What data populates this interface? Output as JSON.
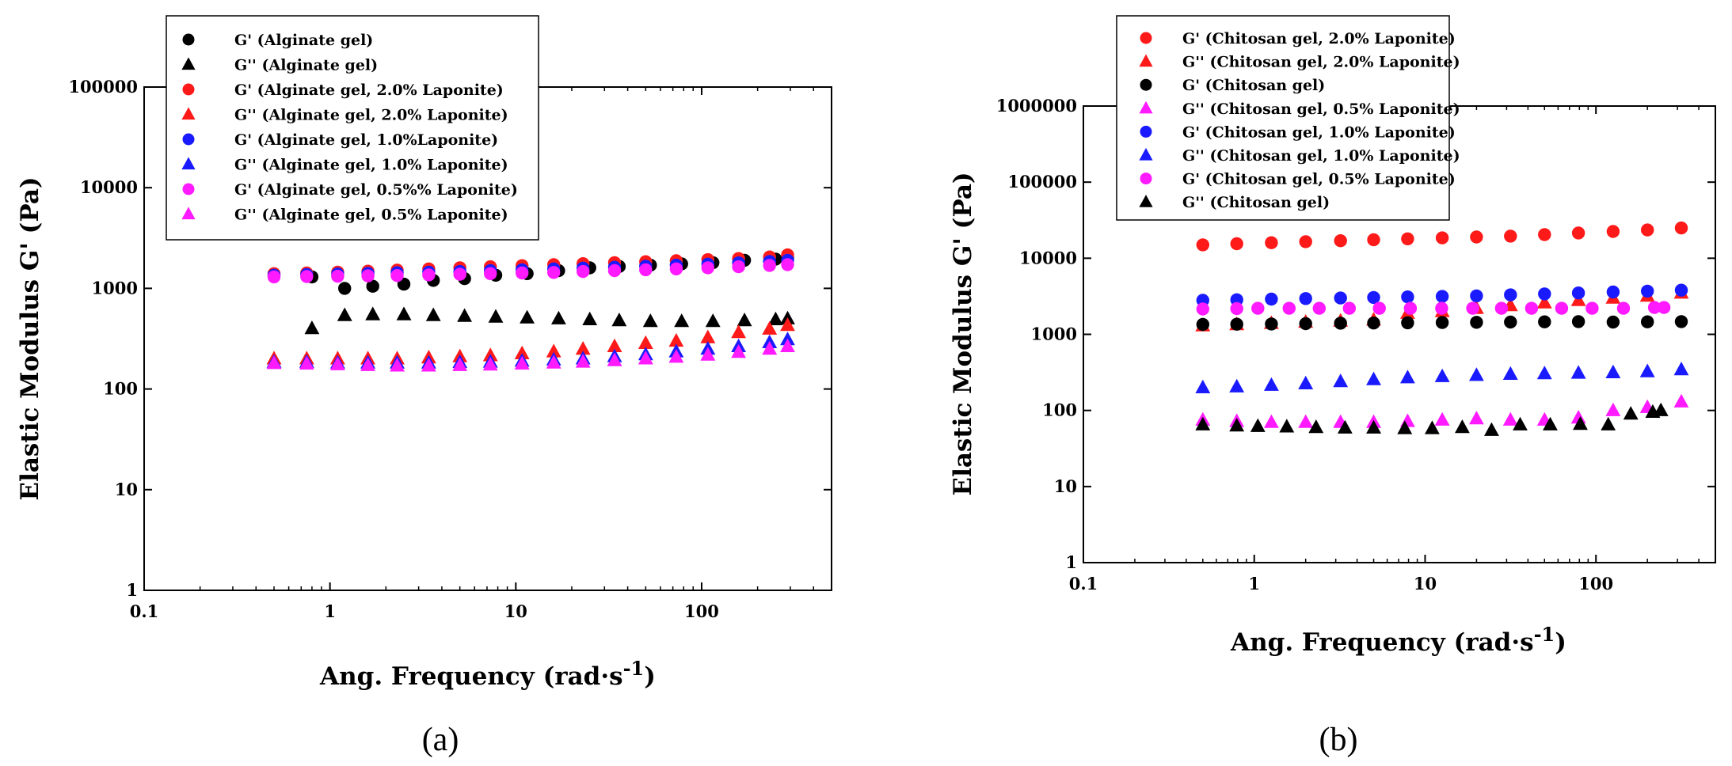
{
  "chart_data": [
    {
      "type": "scatter",
      "panel_label": "(a)",
      "xscale": "log",
      "yscale": "log",
      "xlabel_main": "Ang. Frequency (rad·s",
      "xlabel_sup": "-1",
      "xlabel_end": ")",
      "ylabel": "Elastic Modulus G' (Pa)",
      "xlim": [
        0.1,
        500
      ],
      "ylim": [
        1,
        100000
      ],
      "xticks": [
        {
          "v": 0.1,
          "label": "0.1"
        },
        {
          "v": 1,
          "label": "1"
        },
        {
          "v": 10,
          "label": "10"
        },
        {
          "v": 100,
          "label": "100"
        }
      ],
      "yticks": [
        {
          "v": 1,
          "label": "1"
        },
        {
          "v": 10,
          "label": "10"
        },
        {
          "v": 100,
          "label": "100"
        },
        {
          "v": 1000,
          "label": "1000"
        },
        {
          "v": 10000,
          "label": "10000"
        },
        {
          "v": 100000,
          "label": "100000"
        }
      ],
      "legend_position": "top-left",
      "series": [
        {
          "name": "G' (Alginate gel)",
          "color": "#000000",
          "marker": "circle",
          "x": [
            0.8,
            1.2,
            1.7,
            2.5,
            3.6,
            5.3,
            7.8,
            11.5,
            17,
            25,
            36,
            53,
            78,
            115,
            170,
            250,
            290
          ],
          "y": [
            1300,
            1000,
            1050,
            1100,
            1200,
            1250,
            1350,
            1400,
            1500,
            1600,
            1650,
            1700,
            1750,
            1800,
            1900,
            1950,
            2000
          ]
        },
        {
          "name": "G'' (Alginate gel)",
          "color": "#000000",
          "marker": "triangle",
          "x": [
            0.8,
            1.2,
            1.7,
            2.5,
            3.6,
            5.3,
            7.8,
            11.5,
            17,
            25,
            36,
            53,
            78,
            115,
            170,
            250,
            290
          ],
          "y": [
            400,
            540,
            550,
            550,
            540,
            530,
            520,
            510,
            500,
            490,
            480,
            470,
            470,
            470,
            480,
            490,
            500
          ]
        },
        {
          "name": "G' (Alginate gel, 2.0% Laponite)",
          "color": "#ff1a1a",
          "marker": "circle",
          "x": [
            0.5,
            0.75,
            1.1,
            1.6,
            2.3,
            3.4,
            5,
            7.3,
            10.8,
            16,
            23,
            34,
            50,
            73,
            108,
            158,
            232,
            290
          ],
          "y": [
            1400,
            1420,
            1450,
            1480,
            1520,
            1560,
            1600,
            1640,
            1680,
            1720,
            1760,
            1800,
            1840,
            1880,
            1930,
            1980,
            2050,
            2150
          ]
        },
        {
          "name": "G'' (Alginate gel, 2.0% Laponite)",
          "color": "#ff1a1a",
          "marker": "triangle",
          "x": [
            0.5,
            0.75,
            1.1,
            1.6,
            2.3,
            3.4,
            5,
            7.3,
            10.8,
            16,
            23,
            34,
            50,
            73,
            108,
            158,
            232,
            290
          ],
          "y": [
            200,
            200,
            200,
            200,
            200,
            205,
            210,
            215,
            225,
            235,
            250,
            265,
            285,
            300,
            325,
            365,
            395,
            430
          ]
        },
        {
          "name": "G' (Alginate gel, 1.0%Laponite)",
          "color": "#1a1aff",
          "marker": "circle",
          "x": [
            0.5,
            0.75,
            1.1,
            1.6,
            2.3,
            3.4,
            5,
            7.3,
            10.8,
            16,
            23,
            34,
            50,
            73,
            108,
            158,
            232,
            290
          ],
          "y": [
            1350,
            1370,
            1390,
            1410,
            1430,
            1450,
            1470,
            1500,
            1530,
            1560,
            1590,
            1620,
            1660,
            1700,
            1740,
            1790,
            1850,
            1900
          ]
        },
        {
          "name": "G'' (Alginate gel, 1.0% Laponite)",
          "color": "#1a1aff",
          "marker": "triangle",
          "x": [
            0.5,
            0.75,
            1.1,
            1.6,
            2.3,
            3.4,
            5,
            7.3,
            10.8,
            16,
            23,
            34,
            50,
            73,
            108,
            158,
            232,
            290
          ],
          "y": [
            185,
            185,
            182,
            182,
            182,
            182,
            184,
            186,
            190,
            195,
            200,
            210,
            220,
            235,
            250,
            265,
            290,
            310
          ]
        },
        {
          "name": "G' (Alginate gel, 0.5%% Laponite)",
          "color": "#ff1aff",
          "marker": "circle",
          "x": [
            0.5,
            0.75,
            1.1,
            1.6,
            2.3,
            3.4,
            5,
            7.3,
            10.8,
            16,
            23,
            34,
            50,
            73,
            108,
            158,
            232,
            290
          ],
          "y": [
            1300,
            1310,
            1320,
            1330,
            1340,
            1360,
            1380,
            1400,
            1420,
            1440,
            1470,
            1500,
            1530,
            1560,
            1600,
            1640,
            1690,
            1720
          ]
        },
        {
          "name": "G'' (Alginate gel, 0.5% Laponite)",
          "color": "#ff1aff",
          "marker": "triangle",
          "x": [
            0.5,
            0.75,
            1.1,
            1.6,
            2.3,
            3.4,
            5,
            7.3,
            10.8,
            16,
            23,
            34,
            50,
            73,
            108,
            158,
            232,
            290
          ],
          "y": [
            180,
            178,
            175,
            172,
            170,
            170,
            172,
            174,
            178,
            182,
            186,
            192,
            200,
            208,
            218,
            232,
            250,
            265
          ]
        }
      ]
    },
    {
      "type": "scatter",
      "panel_label": "(b)",
      "xscale": "log",
      "yscale": "log",
      "xlabel_main": "Ang. Frequency (rad·s",
      "xlabel_sup": "-1",
      "xlabel_end": ")",
      "ylabel": "Elastic Modulus G' (Pa)",
      "xlim": [
        0.1,
        500
      ],
      "ylim": [
        1,
        1000000
      ],
      "xticks": [
        {
          "v": 0.1,
          "label": "0.1"
        },
        {
          "v": 1,
          "label": "1"
        },
        {
          "v": 10,
          "label": "10"
        },
        {
          "v": 100,
          "label": "100"
        }
      ],
      "yticks": [
        {
          "v": 1,
          "label": "1"
        },
        {
          "v": 10,
          "label": "10"
        },
        {
          "v": 100,
          "label": "100"
        },
        {
          "v": 1000,
          "label": "1000"
        },
        {
          "v": 10000,
          "label": "10000"
        },
        {
          "v": 100000,
          "label": "100000"
        },
        {
          "v": 1000000,
          "label": "1000000"
        }
      ],
      "legend_position": "top-left",
      "series": [
        {
          "name": "G' (Chitosan gel, 2.0% Laponite)",
          "color": "#ff1a1a",
          "marker": "circle",
          "x": [
            0.5,
            0.79,
            1.26,
            2,
            3.2,
            5,
            7.9,
            12.6,
            20,
            31.6,
            50,
            79,
            126,
            200,
            316
          ],
          "y": [
            15000,
            15500,
            16000,
            16500,
            17000,
            17500,
            18000,
            18500,
            19000,
            19500,
            20500,
            21500,
            22500,
            23500,
            25000
          ]
        },
        {
          "name": "G'' (Chitosan gel, 2.0% Laponite)",
          "color": "#ff1a1a",
          "marker": "triangle",
          "x": [
            0.5,
            0.79,
            1.26,
            2,
            3.2,
            5,
            7.9,
            12.6,
            20,
            31.6,
            50,
            79,
            126,
            200,
            316
          ],
          "y": [
            1300,
            1350,
            1400,
            1450,
            1500,
            1550,
            1900,
            2000,
            2200,
            2400,
            2600,
            2800,
            3000,
            3200,
            3500
          ]
        },
        {
          "name": "G' (Chitosan gel)",
          "color": "#000000",
          "marker": "circle",
          "x": [
            0.5,
            0.79,
            1.26,
            2,
            3.2,
            5,
            7.9,
            12.6,
            20,
            31.6,
            50,
            79,
            126,
            200,
            316
          ],
          "y": [
            1350,
            1360,
            1370,
            1380,
            1400,
            1410,
            1420,
            1430,
            1440,
            1450,
            1460,
            1470,
            1450,
            1460,
            1470
          ]
        },
        {
          "name": "G'' (Chitosan gel, 0.5% Laponite)",
          "color": "#ff1aff",
          "marker": "triangle",
          "x": [
            0.5,
            0.79,
            1.26,
            2,
            3.2,
            5,
            7.9,
            12.6,
            20,
            31.6,
            50,
            79,
            126,
            200,
            316
          ],
          "y": [
            75,
            72,
            70,
            70,
            70,
            70,
            72,
            75,
            78,
            75,
            75,
            80,
            100,
            110,
            130
          ]
        },
        {
          "name": "G' (Chitosan gel, 1.0% Laponite)",
          "color": "#1a1aff",
          "marker": "circle",
          "x": [
            0.5,
            0.79,
            1.26,
            2,
            3.2,
            5,
            7.9,
            12.6,
            20,
            31.6,
            50,
            79,
            126,
            200,
            316
          ],
          "y": [
            2800,
            2850,
            2900,
            2950,
            3000,
            3050,
            3100,
            3150,
            3200,
            3300,
            3400,
            3500,
            3600,
            3700,
            3800
          ]
        },
        {
          "name": "G'' (Chitosan gel, 1.0% Laponite)",
          "color": "#1a1aff",
          "marker": "triangle",
          "x": [
            0.5,
            0.79,
            1.26,
            2,
            3.2,
            5,
            7.9,
            12.6,
            20,
            31.6,
            50,
            79,
            126,
            200,
            316
          ],
          "y": [
            200,
            205,
            215,
            225,
            240,
            255,
            270,
            280,
            290,
            300,
            305,
            310,
            315,
            325,
            345
          ]
        },
        {
          "name": "G' (Chitosan gel, 0.5% Laponite)",
          "color": "#ff1aff",
          "marker": "circle",
          "x": [
            0.5,
            0.79,
            1.05,
            1.6,
            2.4,
            3.6,
            5.4,
            8.2,
            12.5,
            19,
            28,
            42,
            63,
            95,
            145,
            220,
            250
          ],
          "y": [
            2150,
            2180,
            2200,
            2200,
            2200,
            2200,
            2200,
            2200,
            2200,
            2200,
            2200,
            2200,
            2200,
            2200,
            2200,
            2250,
            2250
          ]
        },
        {
          "name": "G'' (Chitosan gel)",
          "color": "#000000",
          "marker": "triangle",
          "x": [
            0.5,
            0.79,
            1.05,
            1.55,
            2.3,
            3.4,
            5,
            7.6,
            11,
            16.5,
            24.5,
            36,
            54,
            81,
            118,
            160,
            215,
            240
          ],
          "y": [
            65,
            63,
            62,
            61,
            60,
            59,
            59,
            58,
            58,
            60,
            55,
            65,
            65,
            66,
            65,
            90,
            95,
            100
          ]
        }
      ]
    }
  ]
}
